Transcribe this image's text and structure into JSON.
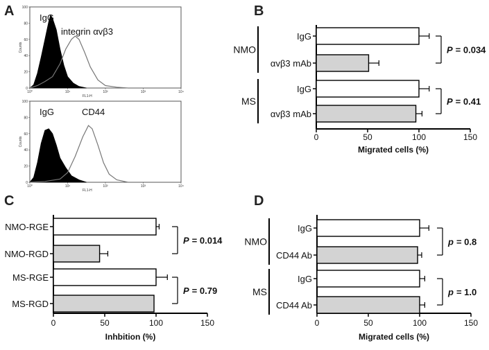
{
  "chart_data": [
    {
      "panel": "A",
      "type": "histogram",
      "plots": [
        {
          "labels": [
            "IgG",
            "integrin αvβ3"
          ],
          "ylabel": "Counts",
          "xlabel": "FL1-H",
          "yticks": [
            "0",
            "20",
            "40",
            "60",
            "80",
            "100"
          ],
          "xticks": [
            "10⁰",
            "10¹",
            "10²",
            "10³",
            "10⁴"
          ],
          "filled": [
            [
              0.0,
              0
            ],
            [
              0.1,
              4
            ],
            [
              0.2,
              18
            ],
            [
              0.3,
              38
            ],
            [
              0.4,
              60
            ],
            [
              0.5,
              82
            ],
            [
              0.55,
              90
            ],
            [
              0.6,
              86
            ],
            [
              0.7,
              72
            ],
            [
              0.8,
              48
            ],
            [
              0.9,
              28
            ],
            [
              1.0,
              14
            ],
            [
              1.15,
              6
            ],
            [
              1.3,
              2
            ],
            [
              1.5,
              0
            ]
          ],
          "outline": [
            [
              0.0,
              0
            ],
            [
              0.2,
              3
            ],
            [
              0.4,
              8
            ],
            [
              0.6,
              14
            ],
            [
              0.8,
              30
            ],
            [
              0.95,
              48
            ],
            [
              1.1,
              60
            ],
            [
              1.2,
              64
            ],
            [
              1.3,
              60
            ],
            [
              1.45,
              44
            ],
            [
              1.6,
              26
            ],
            [
              1.8,
              10
            ],
            [
              2.0,
              3
            ],
            [
              2.3,
              1
            ],
            [
              2.6,
              0
            ]
          ]
        },
        {
          "labels": [
            "IgG",
            "CD44"
          ],
          "ylabel": "Counts",
          "xlabel": "FL1-H",
          "yticks": [
            "0",
            "20",
            "40",
            "60",
            "80",
            "100"
          ],
          "xticks": [
            "10⁰",
            "10¹",
            "10²",
            "10³",
            "10⁴"
          ],
          "filled": [
            [
              0.0,
              0
            ],
            [
              0.1,
              6
            ],
            [
              0.2,
              24
            ],
            [
              0.3,
              48
            ],
            [
              0.4,
              64
            ],
            [
              0.5,
              66
            ],
            [
              0.6,
              60
            ],
            [
              0.7,
              46
            ],
            [
              0.8,
              30
            ],
            [
              0.95,
              18
            ],
            [
              1.1,
              8
            ],
            [
              1.3,
              3
            ],
            [
              1.5,
              0
            ]
          ],
          "outline": [
            [
              0.0,
              0
            ],
            [
              0.4,
              1
            ],
            [
              0.8,
              4
            ],
            [
              1.0,
              12
            ],
            [
              1.2,
              32
            ],
            [
              1.4,
              56
            ],
            [
              1.55,
              70
            ],
            [
              1.65,
              66
            ],
            [
              1.8,
              46
            ],
            [
              1.95,
              24
            ],
            [
              2.1,
              10
            ],
            [
              2.3,
              3
            ],
            [
              2.6,
              0
            ]
          ]
        }
      ]
    },
    {
      "panel": "B",
      "type": "bar",
      "orientation": "horizontal",
      "categories": [
        "IgG",
        "αvβ3 mAb",
        "IgG",
        "αvβ3 mAb"
      ],
      "values": [
        100,
        51,
        100,
        97
      ],
      "errors": [
        10,
        10,
        10,
        6
      ],
      "fills": [
        "#ffffff",
        "#d3d3d3",
        "#ffffff",
        "#d3d3d3"
      ],
      "groups": [
        {
          "name": "NMO",
          "p_label": "P",
          "p_value": "= 0.034"
        },
        {
          "name": "MS",
          "p_label": "P",
          "p_value": "= 0.41"
        }
      ],
      "xlabel": "Migrated cells (%)",
      "xlim": [
        0,
        150
      ],
      "xticks": [
        "0",
        "50",
        "100",
        "150"
      ]
    },
    {
      "panel": "C",
      "type": "bar",
      "orientation": "horizontal",
      "categories": [
        "NMO-RGE",
        "NMO-RGD",
        "MS-RGE",
        "MS-RGD"
      ],
      "values": [
        100,
        45,
        100,
        98
      ],
      "errors": [
        3,
        8,
        11,
        0
      ],
      "fills": [
        "#ffffff",
        "#d3d3d3",
        "#ffffff",
        "#d3d3d3"
      ],
      "groups": [
        {
          "name": "",
          "p_label": "P",
          "p_value": "= 0.014"
        },
        {
          "name": "",
          "p_label": "P",
          "p_value": "= 0.79"
        }
      ],
      "xlabel": "Inhbition (%)",
      "xlim": [
        0,
        150
      ],
      "xticks": [
        "0",
        "50",
        "100",
        "150"
      ]
    },
    {
      "panel": "D",
      "type": "bar",
      "orientation": "horizontal",
      "categories": [
        "IgG",
        "CD44 Ab",
        "IgG",
        "CD44 Ab"
      ],
      "values": [
        100,
        98,
        100,
        100
      ],
      "errors": [
        9,
        4,
        5,
        5
      ],
      "fills": [
        "#ffffff",
        "#d3d3d3",
        "#ffffff",
        "#d3d3d3"
      ],
      "groups": [
        {
          "name": "NMO",
          "p_label": "p",
          "p_value": "= 0.8"
        },
        {
          "name": "MS",
          "p_label": "p",
          "p_value": "= 1.0"
        }
      ],
      "xlabel": "Migrated cells (%)",
      "xlim": [
        0,
        150
      ],
      "xticks": [
        "0",
        "50",
        "100",
        "150"
      ]
    }
  ]
}
